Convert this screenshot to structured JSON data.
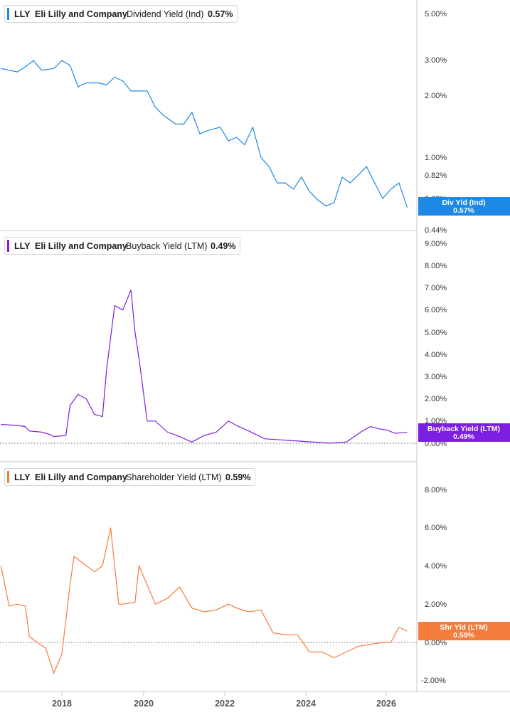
{
  "ticker": "LLY",
  "company": "Eli Lilly and Company",
  "x_ticks": [
    "2018",
    "2020",
    "2022",
    "2024",
    "2026"
  ],
  "chart_data": [
    {
      "type": "line",
      "metric_label": "Dividend Yield (Ind)",
      "current_value": "0.57%",
      "tag": [
        "Div Yld (Ind)",
        "0.57%"
      ],
      "color": "#1e88e5",
      "scale": "log",
      "ylim": [
        0.44,
        5.0
      ],
      "y_ticks": [
        "5.00%",
        "3.00%",
        "2.00%",
        "1.00%",
        "0.82%",
        "0.63%",
        "0.44%"
      ],
      "y_tick_values": [
        5.0,
        3.0,
        2.0,
        1.0,
        0.82,
        0.63,
        0.44
      ],
      "zero_line": false,
      "series": [
        {
          "x": [
            2016.5,
            2016.9,
            2017.1,
            2017.3,
            2017.5,
            2017.8,
            2018.0,
            2018.2,
            2018.4,
            2018.6,
            2018.9,
            2019.1,
            2019.3,
            2019.5,
            2019.7,
            2019.9,
            2020.1,
            2020.3,
            2020.5,
            2020.8,
            2021.0,
            2021.2,
            2021.4,
            2021.6,
            2021.9,
            2022.1,
            2022.3,
            2022.5,
            2022.7,
            2022.9,
            2023.1,
            2023.3,
            2023.5,
            2023.7,
            2023.9,
            2024.1,
            2024.3,
            2024.5,
            2024.7,
            2024.9,
            2025.1,
            2025.3,
            2025.5,
            2025.7,
            2025.9,
            2026.1,
            2026.3,
            2026.5
          ],
          "y": [
            2.7,
            2.6,
            2.75,
            2.95,
            2.65,
            2.7,
            2.95,
            2.8,
            2.2,
            2.3,
            2.3,
            2.25,
            2.45,
            2.35,
            2.1,
            2.1,
            2.1,
            1.75,
            1.6,
            1.45,
            1.45,
            1.65,
            1.3,
            1.35,
            1.4,
            1.2,
            1.25,
            1.15,
            1.4,
            1.0,
            0.9,
            0.75,
            0.75,
            0.7,
            0.8,
            0.68,
            0.62,
            0.58,
            0.6,
            0.8,
            0.75,
            0.82,
            0.9,
            0.75,
            0.63,
            0.7,
            0.75,
            0.57
          ]
        }
      ]
    },
    {
      "type": "line",
      "metric_label": "Buyback Yield (LTM)",
      "current_value": "0.49%",
      "tag": [
        "Buyback Yield (LTM)",
        "0.49%"
      ],
      "color": "#7b1fe0",
      "scale": "linear",
      "ylim": [
        0.0,
        9.0
      ],
      "y_ticks": [
        "9.00%",
        "8.00%",
        "7.00%",
        "6.00%",
        "5.00%",
        "4.00%",
        "3.00%",
        "2.00%",
        "1.00%",
        "0.00%"
      ],
      "y_tick_values": [
        9,
        8,
        7,
        6,
        5,
        4,
        3,
        2,
        1,
        0
      ],
      "zero_line": true,
      "series": [
        {
          "x": [
            2016.5,
            2016.9,
            2017.1,
            2017.2,
            2017.5,
            2017.7,
            2017.8,
            2018.1,
            2018.2,
            2018.4,
            2018.6,
            2018.8,
            2019.0,
            2019.1,
            2019.3,
            2019.5,
            2019.7,
            2019.8,
            2019.9,
            2020.1,
            2020.3,
            2020.6,
            2020.9,
            2021.2,
            2021.5,
            2021.8,
            2022.1,
            2022.3,
            2022.6,
            2023.0,
            2023.4,
            2023.8,
            2024.2,
            2024.6,
            2025.0,
            2025.2,
            2025.4,
            2025.6,
            2025.8,
            2026.0,
            2026.2,
            2026.5
          ],
          "y": [
            0.85,
            0.8,
            0.75,
            0.55,
            0.5,
            0.4,
            0.3,
            0.35,
            1.7,
            2.2,
            2.0,
            1.3,
            1.2,
            3.3,
            6.2,
            6.0,
            6.9,
            5.0,
            3.8,
            1.0,
            1.0,
            0.5,
            0.3,
            0.05,
            0.35,
            0.5,
            1.0,
            0.8,
            0.55,
            0.2,
            0.15,
            0.1,
            0.05,
            0.0,
            0.05,
            0.3,
            0.55,
            0.75,
            0.65,
            0.6,
            0.45,
            0.49
          ]
        }
      ]
    },
    {
      "type": "line",
      "metric_label": "Shareholder Yield (LTM)",
      "current_value": "0.59%",
      "tag": [
        "Shr Yld (LTM)",
        "0.59%"
      ],
      "color": "#f47c3c",
      "scale": "linear",
      "ylim": [
        -2.0,
        8.0
      ],
      "y_ticks": [
        "8.00%",
        "6.00%",
        "4.00%",
        "2.00%",
        "0.00%",
        "-2.00%"
      ],
      "y_tick_values": [
        8,
        6,
        4,
        2,
        0,
        -2
      ],
      "zero_line": true,
      "series": [
        {
          "x": [
            2016.5,
            2016.7,
            2016.9,
            2017.1,
            2017.2,
            2017.4,
            2017.6,
            2017.8,
            2018.0,
            2018.2,
            2018.3,
            2018.6,
            2018.8,
            2019.0,
            2019.2,
            2019.4,
            2019.5,
            2019.8,
            2019.9,
            2020.1,
            2020.3,
            2020.6,
            2020.9,
            2021.2,
            2021.5,
            2021.8,
            2022.1,
            2022.3,
            2022.6,
            2022.9,
            2023.2,
            2023.5,
            2023.8,
            2024.1,
            2024.4,
            2024.7,
            2025.0,
            2025.3,
            2025.6,
            2025.9,
            2026.1,
            2026.3,
            2026.5
          ],
          "y": [
            4.0,
            1.9,
            2.0,
            1.9,
            0.3,
            0.0,
            -0.3,
            -1.6,
            -0.6,
            3.0,
            4.5,
            4.0,
            3.7,
            4.0,
            6.0,
            2.0,
            2.0,
            2.1,
            4.0,
            3.0,
            2.0,
            2.3,
            2.9,
            1.8,
            1.6,
            1.7,
            2.0,
            1.8,
            1.6,
            1.7,
            0.5,
            0.4,
            0.4,
            -0.5,
            -0.5,
            -0.8,
            -0.5,
            -0.2,
            -0.1,
            0.0,
            0.0,
            0.8,
            0.59
          ]
        }
      ]
    }
  ]
}
